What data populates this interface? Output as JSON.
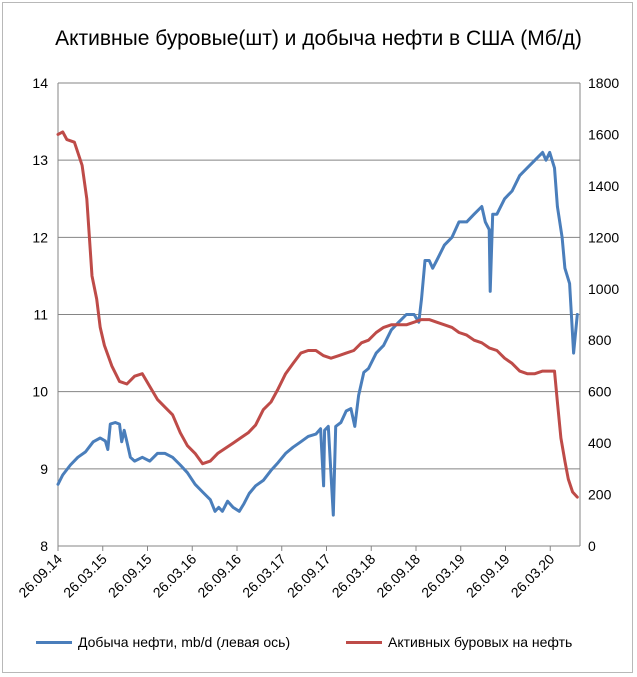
{
  "chart_data": {
    "type": "line",
    "title": "Активные буровые(шт) и добыча нефти в США (Мб/д)",
    "x_tick_labels": [
      "26.09.14",
      "26.03.15",
      "26.09.15",
      "26.03.16",
      "26.09.16",
      "26.03.17",
      "26.09.17",
      "26.03.18",
      "26.09.18",
      "26.03.19",
      "26.09.19",
      "26.03.20"
    ],
    "y_left": {
      "min": 8,
      "max": 14,
      "ticks": [
        "8",
        "9",
        "10",
        "11",
        "12",
        "13",
        "14"
      ]
    },
    "y_right": {
      "min": 0,
      "max": 1800,
      "ticks": [
        "0",
        "200",
        "400",
        "600",
        "800",
        "1000",
        "1200",
        "1400",
        "1600",
        "1800"
      ]
    },
    "grid": true,
    "legend_position": "bottom",
    "series": [
      {
        "name": "Добыча нефти, mb/d (левая ось)",
        "axis": "left",
        "color": "#4a7ebb",
        "values": [
          [
            "2014-09-26",
            8.8
          ],
          [
            "2014-10-15",
            8.92
          ],
          [
            "2014-11-15",
            9.05
          ],
          [
            "2014-12-15",
            9.15
          ],
          [
            "2015-01-15",
            9.22
          ],
          [
            "2015-02-15",
            9.35
          ],
          [
            "2015-03-15",
            9.4
          ],
          [
            "2015-04-05",
            9.36
          ],
          [
            "2015-04-15",
            9.25
          ],
          [
            "2015-04-25",
            9.58
          ],
          [
            "2015-05-15",
            9.6
          ],
          [
            "2015-06-01",
            9.58
          ],
          [
            "2015-06-10",
            9.35
          ],
          [
            "2015-06-20",
            9.5
          ],
          [
            "2015-07-01",
            9.35
          ],
          [
            "2015-07-15",
            9.15
          ],
          [
            "2015-08-01",
            9.1
          ],
          [
            "2015-09-01",
            9.15
          ],
          [
            "2015-10-01",
            9.1
          ],
          [
            "2015-11-01",
            9.2
          ],
          [
            "2015-12-01",
            9.2
          ],
          [
            "2016-01-01",
            9.15
          ],
          [
            "2016-02-01",
            9.05
          ],
          [
            "2016-03-01",
            8.95
          ],
          [
            "2016-04-01",
            8.8
          ],
          [
            "2016-05-01",
            8.7
          ],
          [
            "2016-06-01",
            8.6
          ],
          [
            "2016-06-20",
            8.45
          ],
          [
            "2016-07-05",
            8.5
          ],
          [
            "2016-07-20",
            8.45
          ],
          [
            "2016-08-10",
            8.58
          ],
          [
            "2016-09-01",
            8.5
          ],
          [
            "2016-09-26",
            8.45
          ],
          [
            "2016-10-15",
            8.55
          ],
          [
            "2016-11-05",
            8.68
          ],
          [
            "2016-12-01",
            8.78
          ],
          [
            "2017-01-01",
            8.85
          ],
          [
            "2017-02-01",
            8.98
          ],
          [
            "2017-03-01",
            9.08
          ],
          [
            "2017-04-01",
            9.2
          ],
          [
            "2017-05-01",
            9.28
          ],
          [
            "2017-06-01",
            9.35
          ],
          [
            "2017-07-01",
            9.42
          ],
          [
            "2017-08-01",
            9.45
          ],
          [
            "2017-08-20",
            9.52
          ],
          [
            "2017-09-01",
            8.78
          ],
          [
            "2017-09-05",
            9.5
          ],
          [
            "2017-09-20",
            9.55
          ],
          [
            "2017-10-10",
            8.4
          ],
          [
            "2017-10-20",
            9.55
          ],
          [
            "2017-11-10",
            9.6
          ],
          [
            "2017-12-01",
            9.75
          ],
          [
            "2017-12-20",
            9.78
          ],
          [
            "2018-01-05",
            9.55
          ],
          [
            "2018-01-20",
            9.95
          ],
          [
            "2018-02-10",
            10.25
          ],
          [
            "2018-03-01",
            10.3
          ],
          [
            "2018-04-01",
            10.5
          ],
          [
            "2018-05-01",
            10.6
          ],
          [
            "2018-06-01",
            10.8
          ],
          [
            "2018-07-01",
            10.9
          ],
          [
            "2018-08-01",
            11.0
          ],
          [
            "2018-09-01",
            11.0
          ],
          [
            "2018-09-20",
            10.9
          ],
          [
            "2018-10-01",
            11.2
          ],
          [
            "2018-10-15",
            11.7
          ],
          [
            "2018-11-01",
            11.7
          ],
          [
            "2018-11-15",
            11.6
          ],
          [
            "2018-12-01",
            11.7
          ],
          [
            "2019-01-01",
            11.9
          ],
          [
            "2019-02-01",
            12.0
          ],
          [
            "2019-03-01",
            12.2
          ],
          [
            "2019-04-01",
            12.2
          ],
          [
            "2019-05-01",
            12.3
          ],
          [
            "2019-06-01",
            12.4
          ],
          [
            "2019-06-15",
            12.2
          ],
          [
            "2019-07-01",
            12.1
          ],
          [
            "2019-07-05",
            11.3
          ],
          [
            "2019-07-15",
            12.3
          ],
          [
            "2019-08-01",
            12.3
          ],
          [
            "2019-09-01",
            12.5
          ],
          [
            "2019-10-01",
            12.6
          ],
          [
            "2019-11-01",
            12.8
          ],
          [
            "2019-12-01",
            12.9
          ],
          [
            "2020-01-01",
            13.0
          ],
          [
            "2020-02-01",
            13.1
          ],
          [
            "2020-02-15",
            13.0
          ],
          [
            "2020-03-01",
            13.1
          ],
          [
            "2020-03-20",
            12.9
          ],
          [
            "2020-04-01",
            12.4
          ],
          [
            "2020-04-20",
            12.0
          ],
          [
            "2020-05-01",
            11.6
          ],
          [
            "2020-05-20",
            11.4
          ],
          [
            "2020-06-05",
            10.5
          ],
          [
            "2020-06-20",
            11.0
          ]
        ]
      },
      {
        "name": "Активных буровых на нефть",
        "axis": "right",
        "color": "#be4b48",
        "values": [
          [
            "2014-09-26",
            1600
          ],
          [
            "2014-10-15",
            1610
          ],
          [
            "2014-11-01",
            1580
          ],
          [
            "2014-12-01",
            1570
          ],
          [
            "2015-01-01",
            1480
          ],
          [
            "2015-01-20",
            1350
          ],
          [
            "2015-02-10",
            1050
          ],
          [
            "2015-03-01",
            960
          ],
          [
            "2015-03-15",
            850
          ],
          [
            "2015-04-01",
            780
          ],
          [
            "2015-05-01",
            700
          ],
          [
            "2015-06-01",
            640
          ],
          [
            "2015-07-01",
            630
          ],
          [
            "2015-08-01",
            660
          ],
          [
            "2015-09-01",
            670
          ],
          [
            "2015-10-01",
            620
          ],
          [
            "2015-11-01",
            570
          ],
          [
            "2015-12-01",
            540
          ],
          [
            "2016-01-01",
            510
          ],
          [
            "2016-02-01",
            440
          ],
          [
            "2016-03-01",
            390
          ],
          [
            "2016-04-01",
            360
          ],
          [
            "2016-05-01",
            320
          ],
          [
            "2016-06-01",
            330
          ],
          [
            "2016-07-01",
            360
          ],
          [
            "2016-08-01",
            380
          ],
          [
            "2016-09-01",
            400
          ],
          [
            "2016-10-01",
            420
          ],
          [
            "2016-11-01",
            440
          ],
          [
            "2016-12-01",
            470
          ],
          [
            "2017-01-01",
            530
          ],
          [
            "2017-02-01",
            560
          ],
          [
            "2017-03-01",
            610
          ],
          [
            "2017-04-01",
            670
          ],
          [
            "2017-05-01",
            710
          ],
          [
            "2017-06-01",
            750
          ],
          [
            "2017-07-01",
            760
          ],
          [
            "2017-08-01",
            760
          ],
          [
            "2017-09-01",
            740
          ],
          [
            "2017-10-01",
            730
          ],
          [
            "2017-11-01",
            740
          ],
          [
            "2017-12-01",
            750
          ],
          [
            "2018-01-01",
            760
          ],
          [
            "2018-02-01",
            790
          ],
          [
            "2018-03-01",
            800
          ],
          [
            "2018-04-01",
            830
          ],
          [
            "2018-05-01",
            850
          ],
          [
            "2018-06-01",
            860
          ],
          [
            "2018-07-01",
            860
          ],
          [
            "2018-08-01",
            860
          ],
          [
            "2018-09-01",
            870
          ],
          [
            "2018-10-01",
            880
          ],
          [
            "2018-11-01",
            880
          ],
          [
            "2018-12-01",
            870
          ],
          [
            "2019-01-01",
            860
          ],
          [
            "2019-02-01",
            850
          ],
          [
            "2019-03-01",
            830
          ],
          [
            "2019-04-01",
            820
          ],
          [
            "2019-05-01",
            800
          ],
          [
            "2019-06-01",
            790
          ],
          [
            "2019-07-01",
            770
          ],
          [
            "2019-08-01",
            760
          ],
          [
            "2019-09-01",
            730
          ],
          [
            "2019-10-01",
            710
          ],
          [
            "2019-11-01",
            680
          ],
          [
            "2019-12-01",
            670
          ],
          [
            "2020-01-01",
            670
          ],
          [
            "2020-02-01",
            680
          ],
          [
            "2020-03-01",
            680
          ],
          [
            "2020-03-20",
            680
          ],
          [
            "2020-04-01",
            560
          ],
          [
            "2020-04-15",
            420
          ],
          [
            "2020-05-01",
            330
          ],
          [
            "2020-05-15",
            260
          ],
          [
            "2020-06-01",
            210
          ],
          [
            "2020-06-20",
            190
          ]
        ]
      }
    ]
  }
}
